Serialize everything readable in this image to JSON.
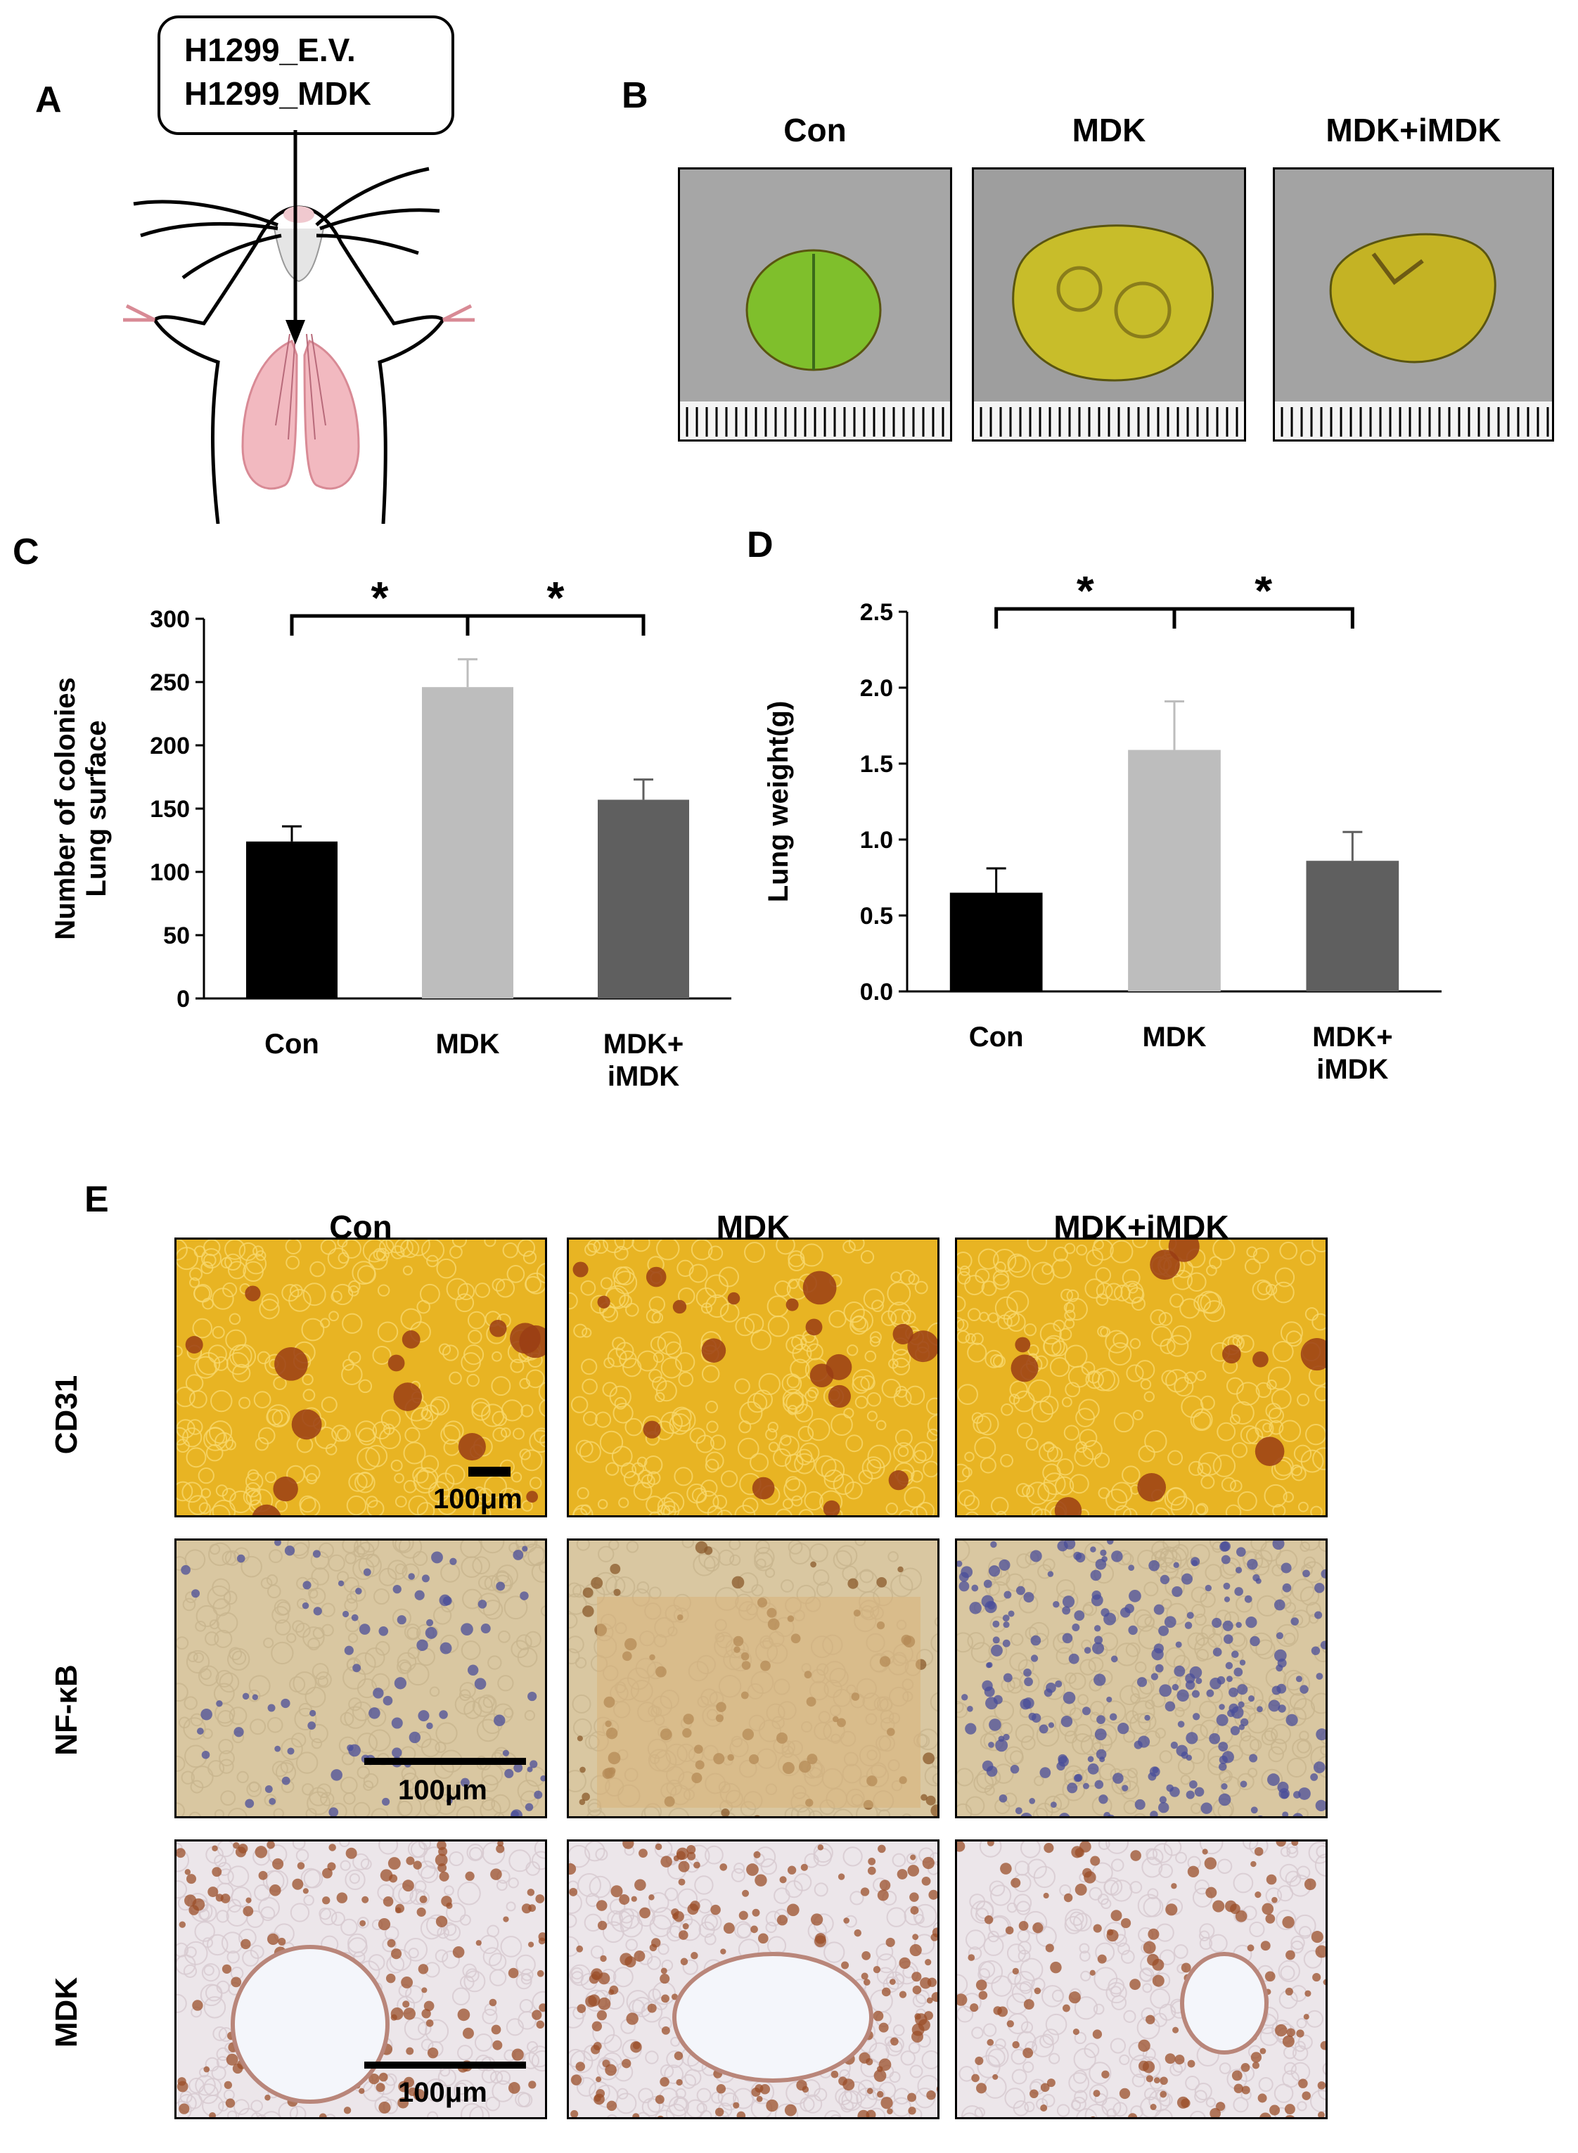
{
  "panels": {
    "A": {
      "label": "A",
      "injection_lines": [
        "H1299_E.V.",
        "H1299_MDK"
      ]
    },
    "B": {
      "label": "B",
      "headers": [
        "Con",
        "MDK",
        "MDK+iMDK"
      ],
      "photo_colors": [
        "#7fbf2c",
        "#c8bd2a",
        "#c4b324"
      ]
    },
    "C": {
      "label": "C"
    },
    "D": {
      "label": "D"
    },
    "E": {
      "label": "E",
      "headers": [
        "Con",
        "MDK",
        "MDK+iMDK"
      ],
      "rows": [
        "CD31",
        "NF-κB",
        "MDK"
      ],
      "scale_label": "100μm",
      "row_colors": {
        "CD31": {
          "bg": "#e8b423",
          "spot": "#9a3d14"
        },
        "NF-κB": {
          "bg": "#d9c7a1",
          "spot": "#4a4d9a"
        },
        "MDK": {
          "bg": "#ece6ea",
          "spot": "#9b4f2a"
        }
      }
    }
  },
  "chart_data": [
    {
      "type": "bar",
      "panel": "C",
      "categories": [
        "Con",
        "MDK",
        "MDK+\niMDK"
      ],
      "values": [
        124,
        246,
        157
      ],
      "errors": [
        12,
        22,
        16
      ],
      "ylabel": "Number of colonies\nLung surface",
      "ylim": [
        0,
        300
      ],
      "yticks": [
        "0",
        "50",
        "100",
        "150",
        "200",
        "250",
        "300"
      ],
      "colors": [
        "#000000",
        "#bdbdbd",
        "#5f5f5f"
      ],
      "significance": [
        {
          "from": 0,
          "to": 1,
          "label": "*"
        },
        {
          "from": 1,
          "to": 2,
          "label": "*"
        }
      ]
    },
    {
      "type": "bar",
      "panel": "D",
      "categories": [
        "Con",
        "MDK",
        "MDK+\niMDK"
      ],
      "values": [
        0.65,
        1.59,
        0.86
      ],
      "errors": [
        0.16,
        0.32,
        0.19
      ],
      "ylabel": "Lung weight(g)",
      "ylim": [
        0,
        2.5
      ],
      "yticks": [
        "0.0",
        "0.5",
        "1.0",
        "1.5",
        "2.0",
        "2.5"
      ],
      "colors": [
        "#000000",
        "#bdbdbd",
        "#5f5f5f"
      ],
      "significance": [
        {
          "from": 0,
          "to": 1,
          "label": "*"
        },
        {
          "from": 1,
          "to": 2,
          "label": "*"
        }
      ]
    }
  ]
}
